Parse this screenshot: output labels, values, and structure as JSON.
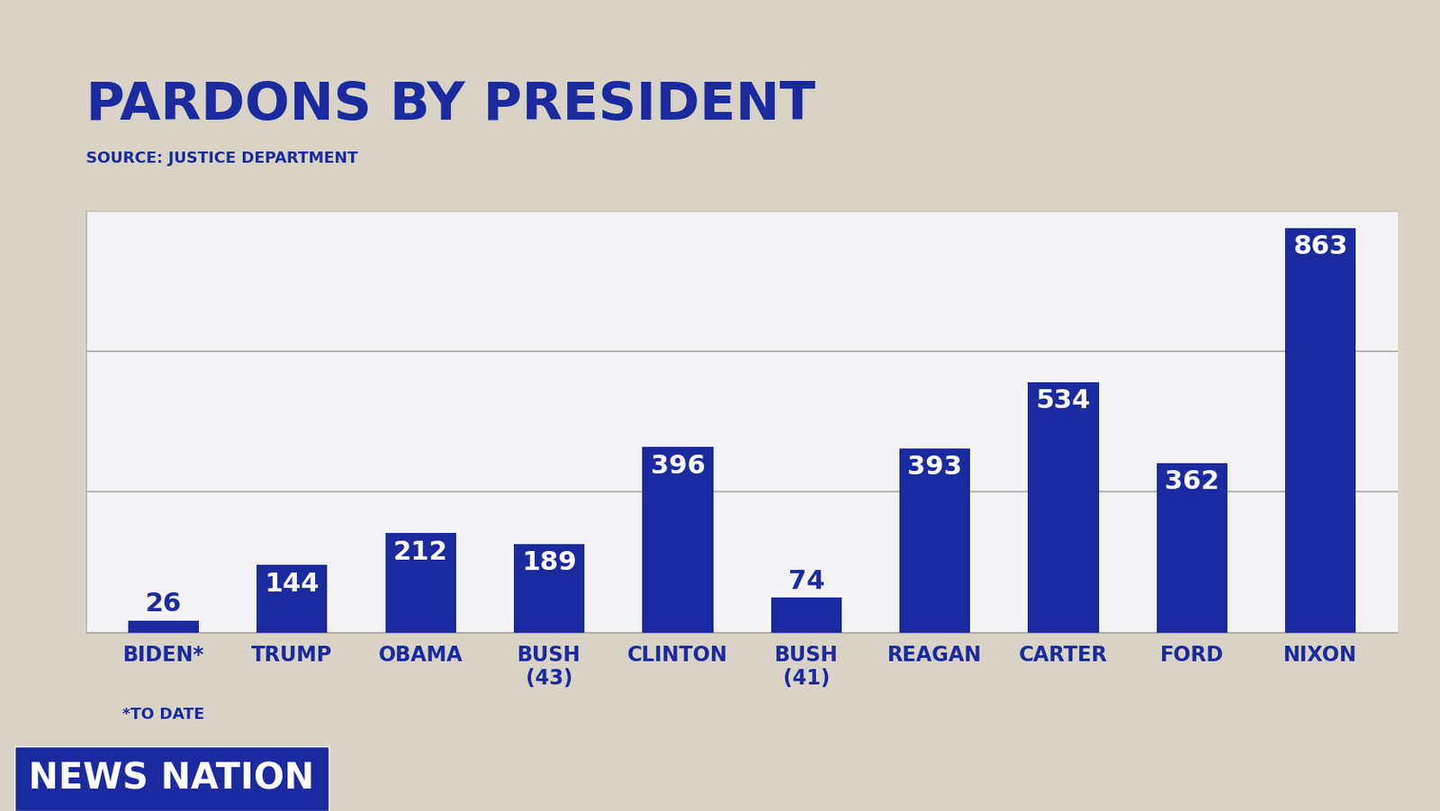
{
  "chart_data": {
    "type": "bar",
    "title": "PARDONS BY PRESIDENT",
    "subtitle": "SOURCE: JUSTICE DEPARTMENT",
    "categories": [
      "BIDEN*",
      "TRUMP",
      "OBAMA",
      "BUSH (43)",
      "CLINTON",
      "BUSH (41)",
      "REAGAN",
      "CARTER",
      "FORD",
      "NIXON"
    ],
    "values": [
      26,
      144,
      212,
      189,
      396,
      74,
      393,
      534,
      362,
      863
    ],
    "color": "#1b2a9e",
    "ylim": [
      0,
      900
    ],
    "yticks": [
      0,
      300,
      600,
      900
    ],
    "grid": true,
    "data_labels": true,
    "tick_labels": "x",
    "annotations": [
      "*TO DATE",
      "NEWS NATION"
    ]
  }
}
